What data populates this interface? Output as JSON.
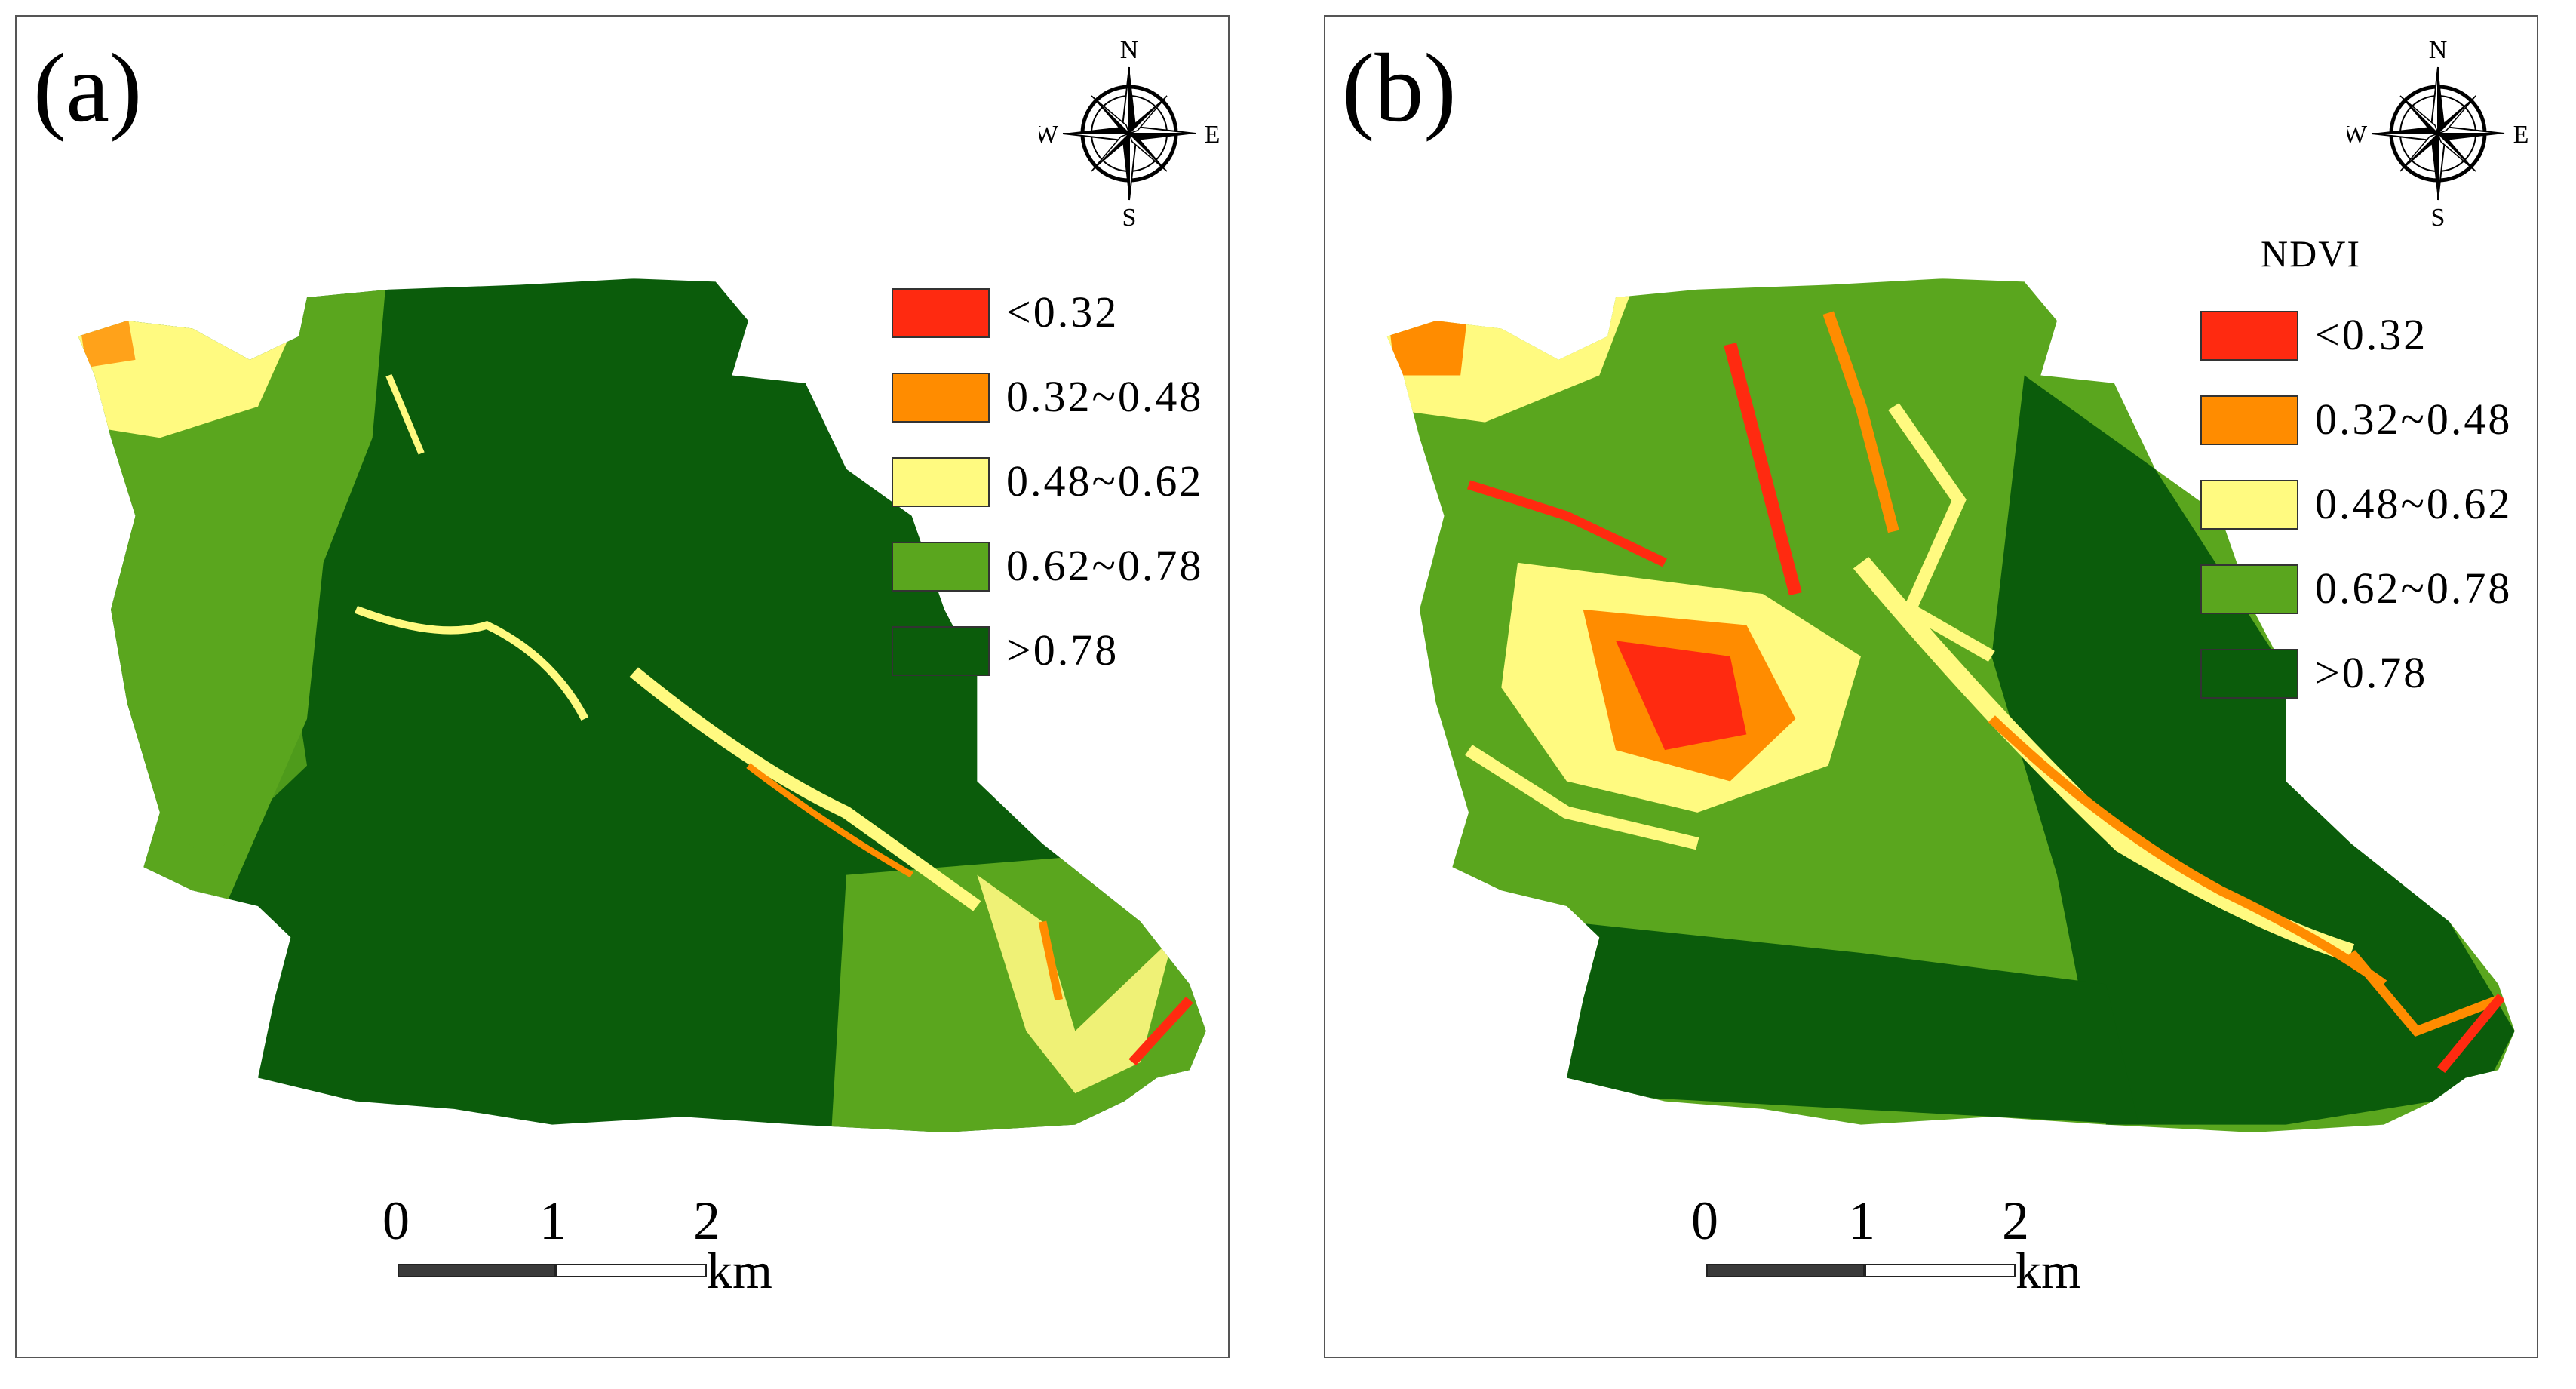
{
  "colors": {
    "class1": "#ff2a10",
    "class2": "#ff8c00",
    "class3": "#fffa80",
    "class4": "#5aa61e",
    "class5": "#0b5c0b"
  },
  "compass": {
    "n": "N",
    "s": "S",
    "e": "E",
    "w": "W"
  },
  "legend": {
    "items": [
      {
        "label": "<0.32"
      },
      {
        "label": "0.32~0.48"
      },
      {
        "label": "0.48~0.62"
      },
      {
        "label": "0.62~0.78"
      },
      {
        "label": ">0.78"
      }
    ]
  },
  "scale": {
    "ticks": [
      "0",
      "1",
      "2"
    ],
    "unit": "km"
  },
  "panels": [
    {
      "label": "(a)",
      "legend_title": ""
    },
    {
      "label": "(b)",
      "legend_title": "NDVI"
    }
  ]
}
